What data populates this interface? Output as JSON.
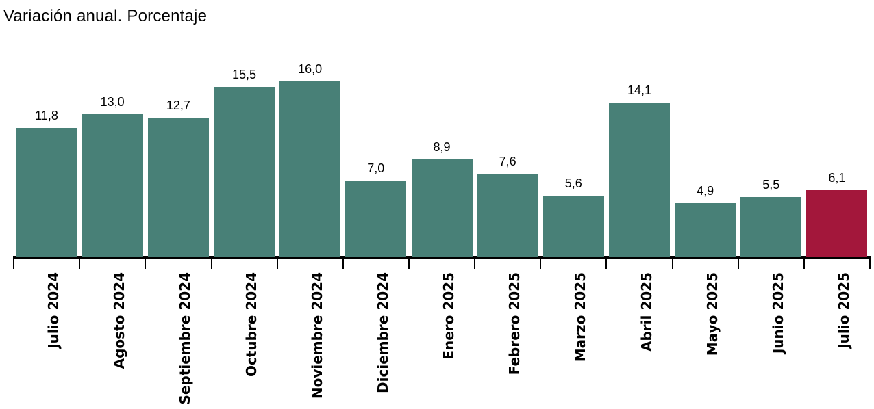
{
  "header": {
    "title": "Variación anual. Porcentaje"
  },
  "chart_data": {
    "type": "bar",
    "title": "Variación anual. Porcentaje",
    "categories": [
      "Julio 2024",
      "Agosto 2024",
      "Septiembre 2024",
      "Octubre 2024",
      "Noviembre 2024",
      "Diciembre 2024",
      "Enero 2025",
      "Febrero 2025",
      "Marzo 2025",
      "Abril 2025",
      "Mayo 2025",
      "Junio 2025",
      "Julio 2025"
    ],
    "values": [
      11.8,
      13.0,
      12.7,
      15.5,
      16.0,
      7.0,
      8.9,
      7.6,
      5.6,
      14.1,
      4.9,
      5.5,
      6.1
    ],
    "value_labels": [
      "11,8",
      "13,0",
      "12,7",
      "15,5",
      "16,0",
      "7,0",
      "8,9",
      "7,6",
      "5,6",
      "14,1",
      "4,9",
      "5,5",
      "6,1"
    ],
    "highlight_index": 12,
    "bar_color": "#488077",
    "highlight_color": "#A3173B",
    "axis_color": "#000000",
    "xlabel": "",
    "ylabel": "",
    "ylim": [
      0,
      17
    ],
    "y_axis_visible": false,
    "grid": false,
    "legend": false,
    "value_decimal_separator": ","
  }
}
